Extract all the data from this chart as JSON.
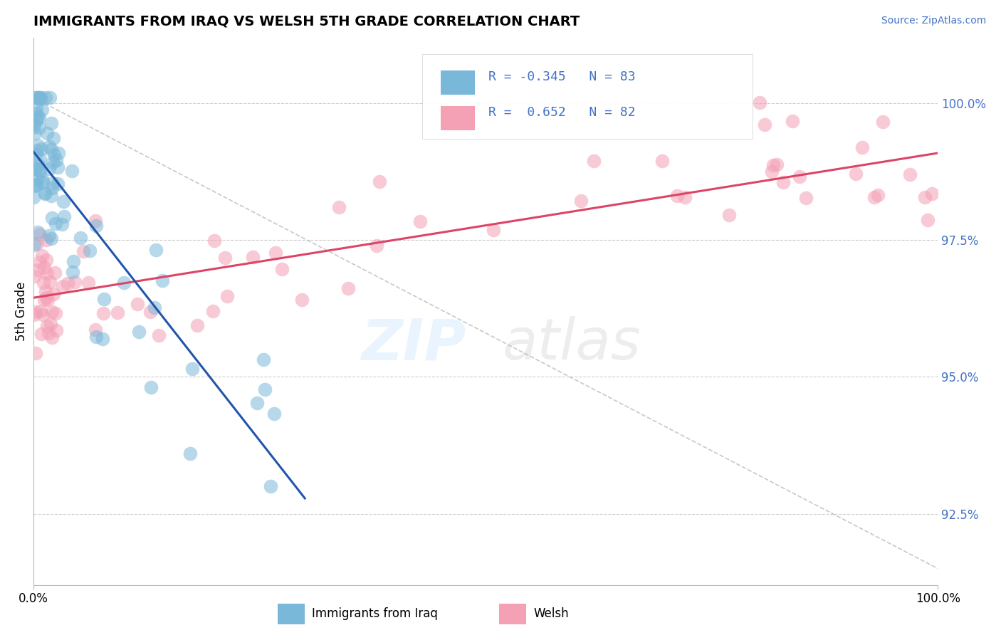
{
  "title": "IMMIGRANTS FROM IRAQ VS WELSH 5TH GRADE CORRELATION CHART",
  "source": "Source: ZipAtlas.com",
  "ylabel": "5th Grade",
  "yticks": [
    92.5,
    95.0,
    97.5,
    100.0
  ],
  "ytick_labels": [
    "92.5%",
    "95.0%",
    "97.5%",
    "100.0%"
  ],
  "xrange": [
    0.0,
    100.0
  ],
  "yrange": [
    91.2,
    101.2
  ],
  "legend_iraq_r": "-0.345",
  "legend_iraq_n": "83",
  "legend_welsh_r": "0.652",
  "legend_welsh_n": "82",
  "blue_color": "#7ab8d9",
  "blue_line_color": "#2255aa",
  "pink_color": "#f4a0b5",
  "pink_line_color": "#dd4466",
  "ytick_color": "#4472c4",
  "title_fontsize": 14,
  "tick_fontsize": 12
}
